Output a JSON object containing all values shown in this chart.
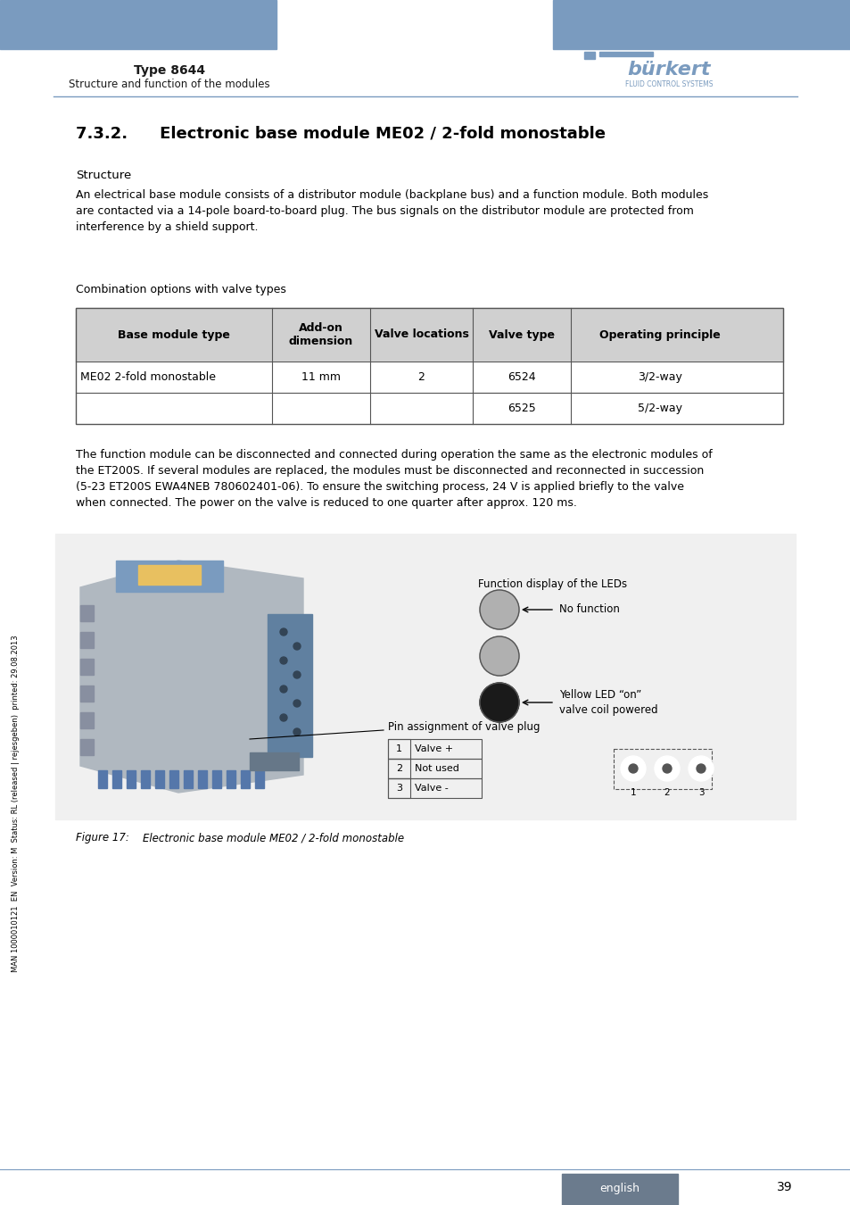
{
  "page_title": "Type 8644",
  "page_subtitle": "Structure and function of the modules",
  "header_bar_color": "#7a9bbf",
  "section_title": "7.3.2.  Electronic base module ME02 / 2-fold monostable",
  "structure_label": "Structure",
  "body_text_1": "An electrical base module consists of a distributor module (backplane bus) and a function module. Both modules\nare contacted via a 14-pole board-to-board plug. The bus signals on the distributor module are protected from\ninterference by a shield support.",
  "combo_label": "Combination options with valve types",
  "table_headers": [
    "Base module type",
    "Add-on\ndimension",
    "Valve locations",
    "Valve type",
    "Operating principle"
  ],
  "table_row1": [
    "ME02 2-fold monostable",
    "11 mm",
    "2",
    "6524",
    "3/2-way"
  ],
  "table_row2": [
    "",
    "",
    "",
    "6525",
    "5/2-way"
  ],
  "body_text_2": "The function module can be disconnected and connected during operation the same as the electronic modules of\nthe ET200S. If several modules are replaced, the modules must be disconnected and reconnected in succession\n(5-23 ET200S EWA4NEB 780602401-06). To ensure the switching process, 24 V is applied briefly to the valve\nwhen connected. The power on the valve is reduced to one quarter after approx. 120 ms.",
  "figure_caption": "Figure 17:  Electronic base module ME02 / 2-fold monostable",
  "led_label_top": "Function display of the LEDs",
  "led_label_no_func": "No function",
  "led_label_yellow": "Yellow LED “on”\nvalve coil powered",
  "pin_label": "Pin assignment of valve plug",
  "pin_rows": [
    [
      "1",
      "Valve +"
    ],
    [
      "2",
      "Not used"
    ],
    [
      "3",
      "Valve -"
    ]
  ],
  "footer_text": "english",
  "footer_bg": "#6b7b8d",
  "page_number": "39",
  "sidebar_text": "MAN 1000010121  EN  Version: M  Status: RL (released | rejesgeben)  printed: 29.08.2013",
  "divider_color": "#7a9bbf",
  "text_color": "#1a1a1a",
  "table_header_bg": "#d0d0d0",
  "table_border_color": "#555555",
  "body_font_size": 9.5,
  "figure_box_color": "#f0f0f0",
  "figure_border_color": "#888888"
}
